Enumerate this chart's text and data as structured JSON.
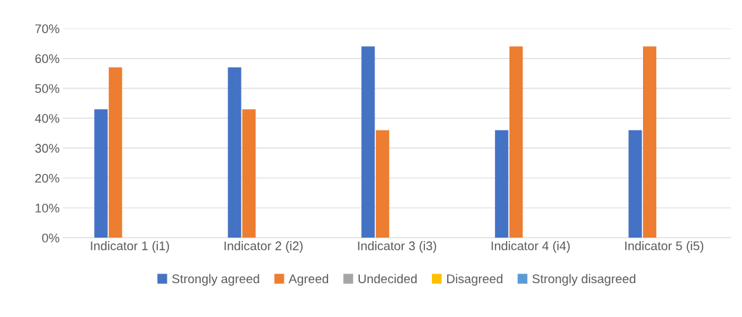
{
  "chart_data": {
    "type": "bar",
    "categories": [
      "Indicator 1 (i1)",
      "Indicator 2 (i2)",
      "Indicator 3 (i3)",
      "Indicator 4 (i4)",
      "Indicator 5 (i5)"
    ],
    "series": [
      {
        "name": "Strongly agreed",
        "color": "#4472c4",
        "values": [
          43,
          57,
          64,
          36,
          36
        ]
      },
      {
        "name": "Agreed",
        "color": "#ed7d31",
        "values": [
          57,
          43,
          36,
          64,
          64
        ]
      },
      {
        "name": "Undecided",
        "color": "#a5a5a5",
        "values": [
          0,
          0,
          0,
          0,
          0
        ]
      },
      {
        "name": "Disagreed",
        "color": "#ffc000",
        "values": [
          0,
          0,
          0,
          0,
          0
        ]
      },
      {
        "name": "Strongly disagreed",
        "color": "#5b9bd5",
        "values": [
          0,
          0,
          0,
          0,
          0
        ]
      }
    ],
    "ylim": [
      0,
      70
    ],
    "yticks": [
      {
        "value": 0,
        "label": "0%"
      },
      {
        "value": 10,
        "label": "10%"
      },
      {
        "value": 20,
        "label": "20%"
      },
      {
        "value": 30,
        "label": "30%"
      },
      {
        "value": 40,
        "label": "40%"
      },
      {
        "value": 50,
        "label": "50%"
      },
      {
        "value": 60,
        "label": "60%"
      },
      {
        "value": 70,
        "label": "70%"
      }
    ],
    "grid": "y",
    "legend": "bottom"
  }
}
